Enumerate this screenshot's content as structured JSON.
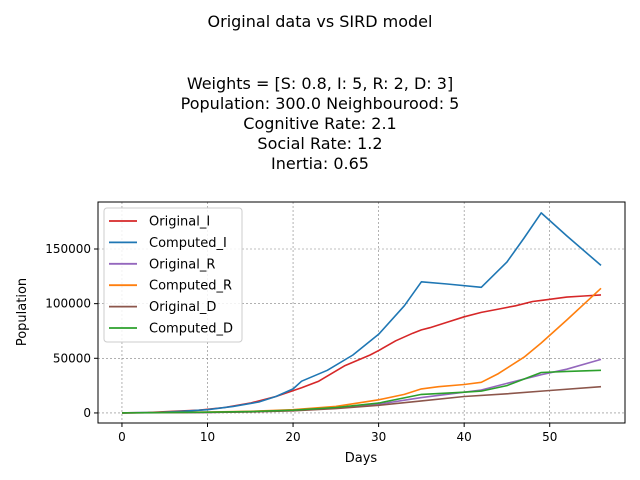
{
  "figure": {
    "suptitle": "Original data vs SIRD model",
    "title_lines": [
      "Weights = [S: 0.8, I: 5, R: 2, D: 3]",
      "Population: 300.0  Neighbourood: 5",
      "Cognitive Rate: 2.1",
      "Social Rate: 1.2",
      "Inertia: 0.65"
    ]
  },
  "chart_data": {
    "type": "line",
    "title": "Weights = [S: 0.8, I: 5, R: 2, D: 3]\nPopulation: 300.0  Neighbourood: 5\nCognitive Rate: 2.1\nSocial Rate: 1.2\nInertia: 0.65",
    "xlabel": "Days",
    "ylabel": "Population",
    "xlim": [
      -2.8,
      58.8
    ],
    "ylim": [
      -9200,
      193000
    ],
    "xticks": [
      0,
      10,
      20,
      30,
      40,
      50
    ],
    "yticks": [
      0,
      50000,
      100000,
      150000
    ],
    "grid": true,
    "legend_position": "upper-left",
    "series": [
      {
        "name": "Original_I",
        "color": "#d62728",
        "x": [
          0,
          3,
          6,
          9,
          12,
          15,
          18,
          21,
          23,
          26,
          29,
          30,
          32,
          34,
          35,
          36,
          38,
          40,
          42,
          44,
          46,
          48,
          49,
          50,
          52,
          54,
          56
        ],
        "y": [
          0,
          300,
          1500,
          2500,
          5000,
          9000,
          15000,
          23000,
          29000,
          43000,
          53000,
          57000,
          66000,
          73000,
          76000,
          78000,
          83000,
          88000,
          92000,
          95000,
          98000,
          102000,
          103000,
          104000,
          106000,
          107000,
          108000
        ]
      },
      {
        "name": "Computed_I",
        "color": "#1f77b4",
        "x": [
          0,
          4,
          7,
          10,
          13,
          16,
          18,
          20,
          21,
          24,
          27,
          30,
          33,
          35,
          38,
          42,
          45,
          47,
          49,
          52,
          56
        ],
        "y": [
          0,
          500,
          1500,
          3000,
          6000,
          10000,
          15000,
          22000,
          29000,
          39000,
          53000,
          72000,
          98000,
          120000,
          118000,
          115000,
          138000,
          160000,
          183000,
          162000,
          135000
        ]
      },
      {
        "name": "Original_R",
        "color": "#9467bd",
        "x": [
          0,
          5,
          10,
          15,
          20,
          25,
          30,
          35,
          40,
          42,
          45,
          49,
          52,
          56
        ],
        "y": [
          0,
          200,
          500,
          1200,
          2500,
          4500,
          8000,
          14000,
          19000,
          21000,
          27000,
          35000,
          40000,
          49000
        ],
        "ply": 0
      },
      {
        "name": "Computed_R",
        "color": "#ff7f0e",
        "x": [
          0,
          5,
          10,
          15,
          20,
          25,
          30,
          33,
          35,
          37,
          40,
          42,
          44,
          47,
          49,
          52,
          56
        ],
        "y": [
          0,
          300,
          800,
          1500,
          3000,
          6000,
          12000,
          17000,
          22000,
          24000,
          26000,
          28000,
          36000,
          51000,
          64000,
          85000,
          114000
        ]
      },
      {
        "name": "Original_D",
        "color": "#8c564b",
        "x": [
          0,
          5,
          10,
          15,
          20,
          25,
          30,
          35,
          40,
          45,
          50,
          56
        ],
        "y": [
          0,
          200,
          500,
          1000,
          2000,
          4000,
          7000,
          11000,
          15000,
          17500,
          20500,
          24000
        ]
      },
      {
        "name": "Computed_D",
        "color": "#2ca02c",
        "x": [
          0,
          5,
          10,
          15,
          20,
          25,
          30,
          35,
          40,
          42,
          45,
          49,
          52,
          56
        ],
        "y": [
          0,
          300,
          700,
          1200,
          2500,
          5000,
          9000,
          17000,
          19000,
          20000,
          25000,
          37000,
          38000,
          39000
        ]
      }
    ]
  }
}
